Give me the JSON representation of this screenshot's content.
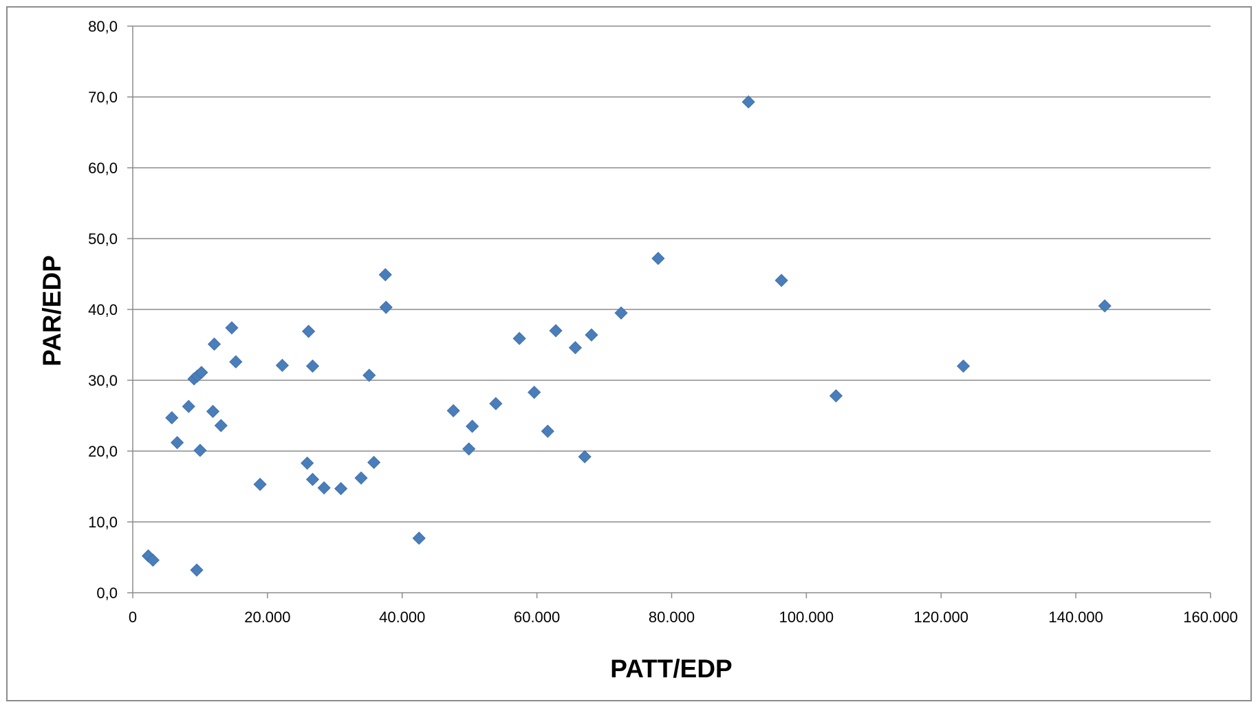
{
  "chart_data": {
    "type": "scatter",
    "title": "",
    "xlabel": "PATT/EDP",
    "ylabel": "PAR/EDP",
    "xlim": [
      0,
      160000
    ],
    "ylim": [
      0,
      80
    ],
    "x_ticks": [
      0,
      20000,
      40000,
      60000,
      80000,
      100000,
      120000,
      140000,
      160000
    ],
    "x_tick_labels": [
      "0",
      "20.000",
      "40.000",
      "60.000",
      "80.000",
      "100.000",
      "120.000",
      "140.000",
      "160.000"
    ],
    "y_ticks": [
      0,
      10,
      20,
      30,
      40,
      50,
      60,
      70,
      80
    ],
    "y_tick_labels": [
      "0,0",
      "10,0",
      "20,0",
      "30,0",
      "40,0",
      "50,0",
      "60,0",
      "70,0",
      "80,0"
    ],
    "grid": "horizontal",
    "legend": "none",
    "marker": "diamond",
    "marker_color": "#4a7ebb",
    "series": [
      {
        "points": [
          [
            2300,
            5.2
          ],
          [
            3000,
            4.6
          ],
          [
            5800,
            24.7
          ],
          [
            6600,
            21.2
          ],
          [
            8300,
            26.3
          ],
          [
            9100,
            30.2
          ],
          [
            9500,
            3.2
          ],
          [
            9600,
            30.6
          ],
          [
            10000,
            20.1
          ],
          [
            10200,
            31.1
          ],
          [
            11900,
            25.6
          ],
          [
            12100,
            35.1
          ],
          [
            13100,
            23.6
          ],
          [
            14700,
            37.4
          ],
          [
            15300,
            32.6
          ],
          [
            18900,
            15.3
          ],
          [
            22200,
            32.1
          ],
          [
            25900,
            18.3
          ],
          [
            26100,
            36.9
          ],
          [
            26700,
            32.0
          ],
          [
            26700,
            16.0
          ],
          [
            28400,
            14.8
          ],
          [
            30900,
            14.7
          ],
          [
            33900,
            16.2
          ],
          [
            35100,
            30.7
          ],
          [
            35800,
            18.4
          ],
          [
            37500,
            44.9
          ],
          [
            37600,
            40.3
          ],
          [
            42500,
            7.7
          ],
          [
            47600,
            25.7
          ],
          [
            49900,
            20.3
          ],
          [
            50400,
            23.5
          ],
          [
            53900,
            26.7
          ],
          [
            57400,
            35.9
          ],
          [
            59600,
            28.3
          ],
          [
            61600,
            22.8
          ],
          [
            62800,
            37.0
          ],
          [
            65700,
            34.6
          ],
          [
            67100,
            19.2
          ],
          [
            68100,
            36.4
          ],
          [
            72500,
            39.5
          ],
          [
            78000,
            47.2
          ],
          [
            91400,
            69.3
          ],
          [
            96300,
            44.1
          ],
          [
            104400,
            27.8
          ],
          [
            123300,
            32.0
          ],
          [
            144300,
            40.5
          ]
        ]
      }
    ]
  }
}
